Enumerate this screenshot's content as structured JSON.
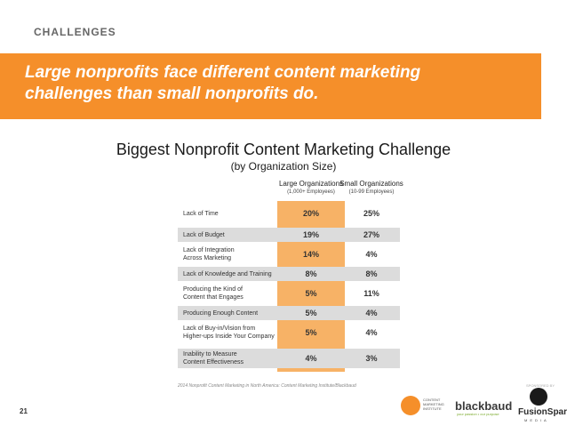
{
  "header": {
    "section_label": "CHALLENGES",
    "headline_line1": "Large nonprofits face different content marketing",
    "headline_line2": "challenges than small nonprofits do."
  },
  "chart_data": {
    "type": "table",
    "title": "Biggest Nonprofit Content Marketing Challenge",
    "subtitle": "(by Organization Size)",
    "columns": [
      {
        "name": "Large Organizations",
        "sub": "(1,000+ Employees)"
      },
      {
        "name": "Small Organizations",
        "sub": "(10-99 Employees)"
      }
    ],
    "rows": [
      {
        "label_lines": [
          "Lack of Time"
        ],
        "values": [
          "20%",
          "25%"
        ],
        "shaded": false
      },
      {
        "label_lines": [
          "Lack of Budget"
        ],
        "values": [
          "19%",
          "27%"
        ],
        "shaded": true
      },
      {
        "label_lines": [
          "Lack of Integration",
          "Across Marketing"
        ],
        "values": [
          "14%",
          "4%"
        ],
        "shaded": false
      },
      {
        "label_lines": [
          "Lack of Knowledge and Training"
        ],
        "values": [
          "8%",
          "8%"
        ],
        "shaded": true
      },
      {
        "label_lines": [
          "Producing the Kind of",
          "Content that Engages"
        ],
        "values": [
          "5%",
          "11%"
        ],
        "shaded": false
      },
      {
        "label_lines": [
          "Producing Enough Content"
        ],
        "values": [
          "5%",
          "4%"
        ],
        "shaded": true
      },
      {
        "label_lines": [
          "Lack of Buy-in/Vision from",
          "Higher-ups Inside Your Company"
        ],
        "values": [
          "5%",
          "4%"
        ],
        "shaded": false
      },
      {
        "label_lines": [
          "Inability to Measure",
          "Content Effectiveness"
        ],
        "values": [
          "4%",
          "3%"
        ],
        "shaded": true
      }
    ],
    "highlight_color": "#f7b266",
    "shade_color": "#dcdcdc"
  },
  "footnote": "2014 Nonprofit Content Marketing in North America: Content Marketing Institute/Blackbaud",
  "page_number": "21",
  "sponsors": {
    "tag": "SPONSORED BY",
    "cmi_text": "CONTENT MARKETING INSTITUTE",
    "blackbaud": "blackbaud",
    "blackbaud_tagline": "your passion • our purpose",
    "fusionspark": "FusionSpark",
    "fusionspark_sub": "MEDIA"
  },
  "colors": {
    "banner": "#f58f2a"
  }
}
